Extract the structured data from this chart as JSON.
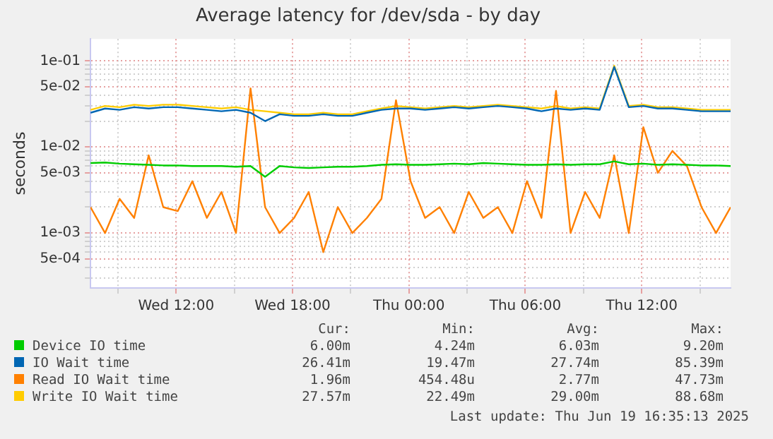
{
  "chart_data": {
    "type": "line",
    "title": "Average latency for /dev/sda - by day",
    "ylabel": "seconds",
    "x": [
      "2025-06-18T07:35",
      "2025-06-18T08:20",
      "2025-06-18T09:05",
      "2025-06-18T09:50",
      "2025-06-18T10:35",
      "2025-06-18T11:20",
      "2025-06-18T12:05",
      "2025-06-18T12:50",
      "2025-06-18T13:35",
      "2025-06-18T14:20",
      "2025-06-18T15:05",
      "2025-06-18T15:50",
      "2025-06-18T16:35",
      "2025-06-18T17:20",
      "2025-06-18T18:05",
      "2025-06-18T18:50",
      "2025-06-18T19:35",
      "2025-06-18T20:20",
      "2025-06-18T21:05",
      "2025-06-18T21:50",
      "2025-06-18T22:35",
      "2025-06-18T23:20",
      "2025-06-19T00:05",
      "2025-06-19T00:50",
      "2025-06-19T01:35",
      "2025-06-19T02:20",
      "2025-06-19T03:05",
      "2025-06-19T03:50",
      "2025-06-19T04:35",
      "2025-06-19T05:20",
      "2025-06-19T06:05",
      "2025-06-19T06:50",
      "2025-06-19T07:35",
      "2025-06-19T08:20",
      "2025-06-19T09:05",
      "2025-06-19T09:50",
      "2025-06-19T10:35",
      "2025-06-19T11:20",
      "2025-06-19T12:05",
      "2025-06-19T12:50",
      "2025-06-19T13:35",
      "2025-06-19T14:20",
      "2025-06-19T15:05",
      "2025-06-19T15:50",
      "2025-06-19T16:35"
    ],
    "series": [
      {
        "name": "Device IO time",
        "color": "#00cc00",
        "values": [
          0.0065,
          0.0066,
          0.0064,
          0.0063,
          0.0062,
          0.0061,
          0.0061,
          0.006,
          0.006,
          0.006,
          0.0059,
          0.006,
          0.0045,
          0.006,
          0.0058,
          0.0057,
          0.0058,
          0.0059,
          0.0059,
          0.006,
          0.0062,
          0.0063,
          0.0062,
          0.0062,
          0.0063,
          0.0064,
          0.0063,
          0.0065,
          0.0064,
          0.0063,
          0.0062,
          0.0062,
          0.0063,
          0.0062,
          0.0063,
          0.0063,
          0.0068,
          0.0063,
          0.0064,
          0.0062,
          0.0063,
          0.0062,
          0.0061,
          0.0061,
          0.006
        ]
      },
      {
        "name": "IO Wait time",
        "color": "#0066b3",
        "values": [
          0.025,
          0.028,
          0.027,
          0.029,
          0.028,
          0.029,
          0.029,
          0.028,
          0.027,
          0.026,
          0.027,
          0.025,
          0.02,
          0.024,
          0.023,
          0.023,
          0.024,
          0.023,
          0.023,
          0.025,
          0.027,
          0.028,
          0.028,
          0.027,
          0.028,
          0.029,
          0.028,
          0.029,
          0.03,
          0.029,
          0.028,
          0.026,
          0.028,
          0.027,
          0.028,
          0.027,
          0.085,
          0.029,
          0.03,
          0.028,
          0.028,
          0.027,
          0.026,
          0.026,
          0.026
        ]
      },
      {
        "name": "Read IO Wait time",
        "color": "#ff8000",
        "values": [
          0.002,
          0.001,
          0.0025,
          0.0015,
          0.008,
          0.002,
          0.0018,
          0.004,
          0.0015,
          0.003,
          0.001,
          0.048,
          0.002,
          0.001,
          0.0015,
          0.003,
          0.0006,
          0.002,
          0.001,
          0.0015,
          0.0025,
          0.035,
          0.004,
          0.0015,
          0.002,
          0.001,
          0.003,
          0.0015,
          0.002,
          0.001,
          0.004,
          0.0015,
          0.045,
          0.001,
          0.003,
          0.0015,
          0.008,
          0.001,
          0.017,
          0.005,
          0.009,
          0.006,
          0.002,
          0.001,
          0.002
        ]
      },
      {
        "name": "Write IO Wait time",
        "color": "#ffcc00",
        "values": [
          0.027,
          0.03,
          0.029,
          0.031,
          0.03,
          0.031,
          0.031,
          0.03,
          0.029,
          0.028,
          0.029,
          0.027,
          0.026,
          0.025,
          0.024,
          0.024,
          0.025,
          0.024,
          0.024,
          0.026,
          0.028,
          0.03,
          0.029,
          0.028,
          0.029,
          0.03,
          0.029,
          0.03,
          0.031,
          0.03,
          0.029,
          0.028,
          0.03,
          0.028,
          0.029,
          0.028,
          0.088,
          0.03,
          0.031,
          0.029,
          0.029,
          0.028,
          0.027,
          0.027,
          0.027
        ]
      }
    ],
    "log": "y",
    "xlim": [
      "2025-06-18T07:35",
      "2025-06-19T16:35"
    ],
    "xticks": [
      {
        "value": "2025-06-18T09:00",
        "label": null
      },
      {
        "value": "2025-06-18T12:00",
        "label": "Wed 12:00"
      },
      {
        "value": "2025-06-18T15:00",
        "label": null
      },
      {
        "value": "2025-06-18T18:00",
        "label": "Wed 18:00"
      },
      {
        "value": "2025-06-18T21:00",
        "label": null
      },
      {
        "value": "2025-06-19T00:00",
        "label": "Thu 00:00"
      },
      {
        "value": "2025-06-19T03:00",
        "label": null
      },
      {
        "value": "2025-06-19T06:00",
        "label": "Thu 06:00"
      },
      {
        "value": "2025-06-19T09:00",
        "label": null
      },
      {
        "value": "2025-06-19T12:00",
        "label": "Thu 12:00"
      },
      {
        "value": "2025-06-19T15:00",
        "label": null
      }
    ],
    "ylim": [
      0.00023,
      0.18
    ],
    "yticks": [
      {
        "value": 0.0003,
        "label": null
      },
      {
        "value": 0.0004,
        "label": null
      },
      {
        "value": 0.0005,
        "label": "5e-04"
      },
      {
        "value": 0.0006,
        "label": null
      },
      {
        "value": 0.0007,
        "label": null
      },
      {
        "value": 0.0008,
        "label": null
      },
      {
        "value": 0.0009,
        "label": null
      },
      {
        "value": 0.001,
        "label": "1e-03"
      },
      {
        "value": 0.002,
        "label": null
      },
      {
        "value": 0.003,
        "label": null
      },
      {
        "value": 0.004,
        "label": null
      },
      {
        "value": 0.005,
        "label": "5e-03"
      },
      {
        "value": 0.006,
        "label": null
      },
      {
        "value": 0.007,
        "label": null
      },
      {
        "value": 0.008,
        "label": null
      },
      {
        "value": 0.009,
        "label": null
      },
      {
        "value": 0.01,
        "label": "1e-02"
      },
      {
        "value": 0.02,
        "label": null
      },
      {
        "value": 0.03,
        "label": null
      },
      {
        "value": 0.04,
        "label": null
      },
      {
        "value": 0.05,
        "label": "5e-02"
      },
      {
        "value": 0.06,
        "label": null
      },
      {
        "value": 0.07,
        "label": null
      },
      {
        "value": 0.08,
        "label": null
      },
      {
        "value": 0.09,
        "label": null
      },
      {
        "value": 0.1,
        "label": "1e-01"
      }
    ],
    "grid": true,
    "legend": "bottom",
    "marker": "none",
    "line_style": "solid",
    "annotations": [
      "Cur:",
      "Min:",
      "Avg:",
      "Max:",
      "6.00m",
      "4.24m",
      "6.03m",
      "9.20m",
      "26.41m",
      "19.47m",
      "27.74m",
      "85.39m",
      "1.96m",
      "454.48u",
      "2.77m",
      "47.73m",
      "27.57m",
      "22.49m",
      "29.00m",
      "88.68m",
      "Last update: Thu Jun 19 16:35:13 2025"
    ]
  }
}
